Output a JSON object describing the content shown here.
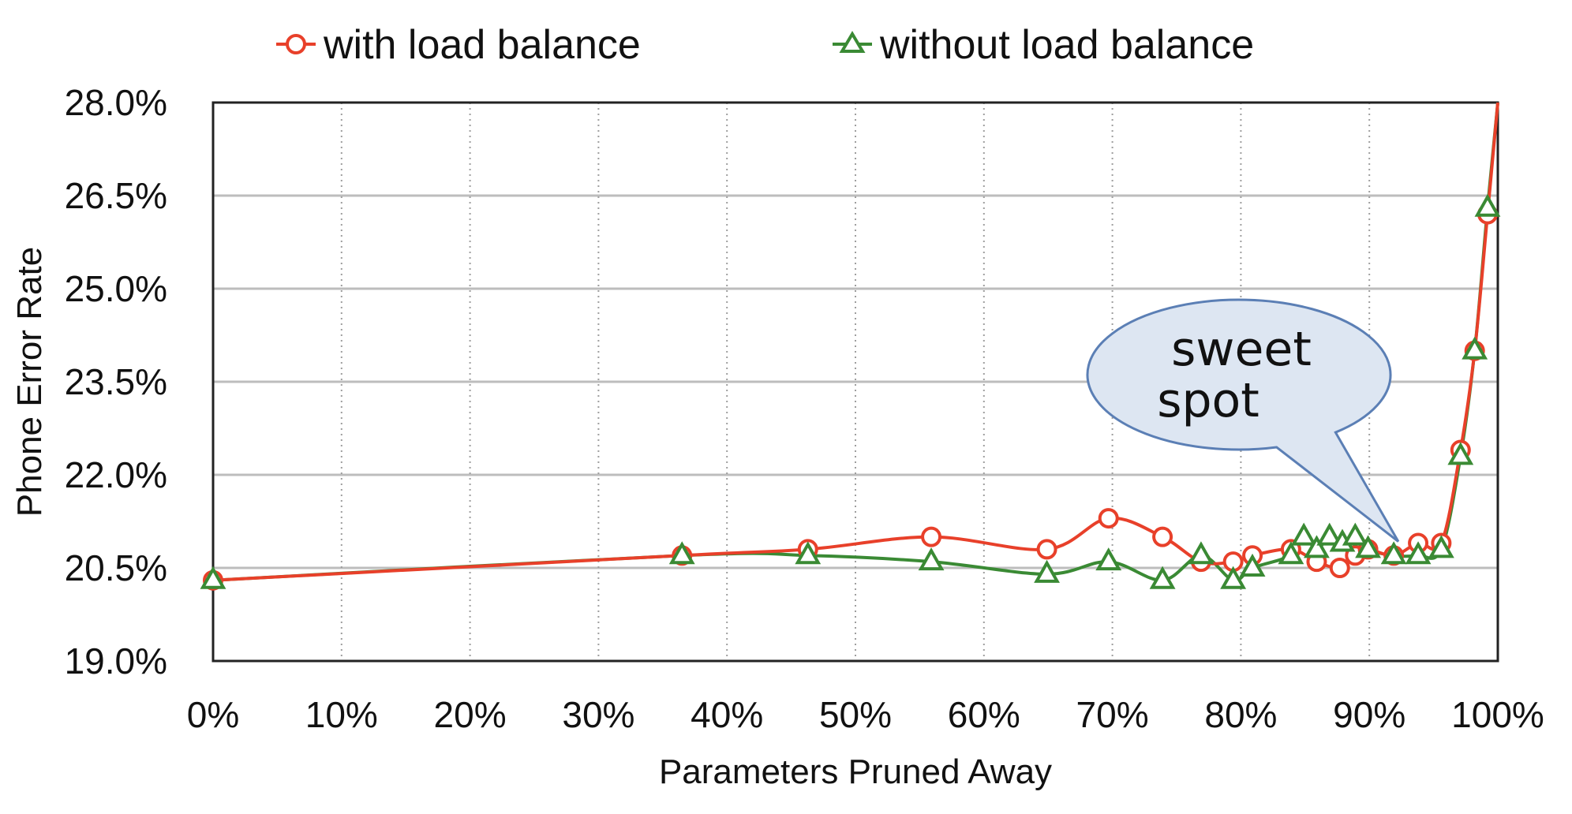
{
  "chart_data": {
    "type": "line",
    "xlabel": "Parameters Pruned Away",
    "ylabel": "Phone Error Rate",
    "xlim": [
      0,
      100
    ],
    "ylim": [
      19.0,
      28.0
    ],
    "x_ticks": [
      0,
      10,
      20,
      30,
      40,
      50,
      60,
      70,
      80,
      90,
      100
    ],
    "x_tick_labels": [
      "0%",
      "10%",
      "20%",
      "30%",
      "40%",
      "50%",
      "60%",
      "70%",
      "80%",
      "90%",
      "100%"
    ],
    "y_ticks": [
      19.0,
      20.5,
      22.0,
      23.5,
      25.0,
      26.5,
      28.0
    ],
    "y_tick_labels": [
      "19.0%",
      "20.5%",
      "22.0%",
      "23.5%",
      "25.0%",
      "26.5%",
      "28.0%"
    ],
    "grid": "on",
    "legend_position": "top",
    "series": [
      {
        "name": "with load balance",
        "color": "#e8402a",
        "marker": "circle",
        "points": [
          [
            0,
            20.3
          ],
          [
            36.5,
            20.7
          ],
          [
            46.3,
            20.8
          ],
          [
            55.9,
            21.0
          ],
          [
            64.9,
            20.8
          ],
          [
            69.7,
            21.3
          ],
          [
            73.9,
            21.0
          ],
          [
            76.9,
            20.6
          ],
          [
            79.4,
            20.6
          ],
          [
            80.9,
            20.7
          ],
          [
            83.9,
            20.8
          ],
          [
            85.9,
            20.6
          ],
          [
            87.7,
            20.5
          ],
          [
            88.9,
            20.7
          ],
          [
            89.9,
            20.8
          ],
          [
            91.9,
            20.7
          ],
          [
            93.8,
            20.9
          ],
          [
            95.6,
            20.9
          ],
          [
            97.1,
            22.4
          ],
          [
            98.2,
            24.0
          ],
          [
            99.2,
            26.2
          ],
          [
            100,
            28.0
          ]
        ]
      },
      {
        "name": "without load balance",
        "color": "#3a8a34",
        "marker": "triangle",
        "points": [
          [
            0,
            20.3
          ],
          [
            36.5,
            20.7
          ],
          [
            46.3,
            20.7
          ],
          [
            55.9,
            20.6
          ],
          [
            64.9,
            20.4
          ],
          [
            69.7,
            20.6
          ],
          [
            73.9,
            20.3
          ],
          [
            76.9,
            20.7
          ],
          [
            79.4,
            20.3
          ],
          [
            80.9,
            20.5
          ],
          [
            83.9,
            20.7
          ],
          [
            84.9,
            21.0
          ],
          [
            85.9,
            20.8
          ],
          [
            86.9,
            21.0
          ],
          [
            87.9,
            20.9
          ],
          [
            88.9,
            21.0
          ],
          [
            89.9,
            20.8
          ],
          [
            91.9,
            20.7
          ],
          [
            93.8,
            20.7
          ],
          [
            95.6,
            20.8
          ],
          [
            97.1,
            22.3
          ],
          [
            98.2,
            24.0
          ],
          [
            99.2,
            26.3
          ],
          [
            100,
            28.0
          ]
        ]
      }
    ],
    "annotation": {
      "text_line1": "sweet",
      "text_line2": "spot",
      "points_to": [
        92.5,
        20.9
      ],
      "fill": "#dde6f2",
      "stroke": "#5b7fb5"
    }
  }
}
